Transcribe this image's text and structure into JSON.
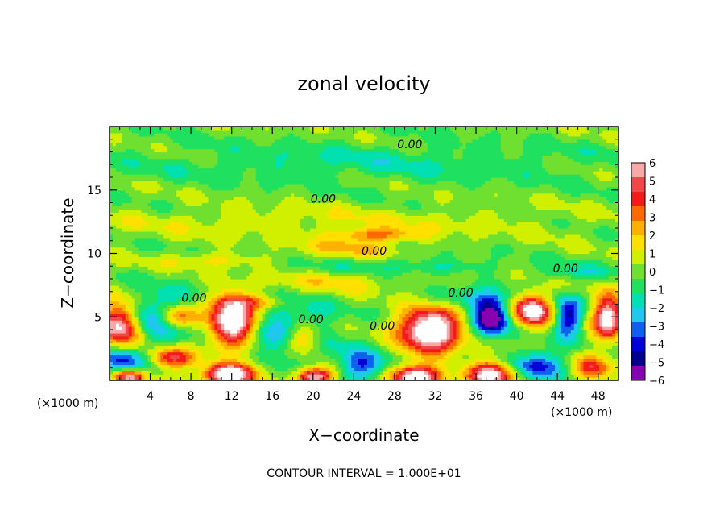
{
  "chart_data": {
    "type": "heatmap",
    "title": "zonal velocity",
    "xlabel": "X−coordinate",
    "ylabel": "Z−coordinate",
    "xunit_left": "(×1000 m)",
    "xunit_right": "(×1000 m)",
    "footer": "CONTOUR INTERVAL = 1.000E+01",
    "xlim": [
      0,
      50
    ],
    "ylim": [
      0,
      20
    ],
    "x_ticks": [
      {
        "value": 4,
        "label": "4"
      },
      {
        "value": 8,
        "label": "8"
      },
      {
        "value": 12,
        "label": "12"
      },
      {
        "value": 16,
        "label": "16"
      },
      {
        "value": 20,
        "label": "20"
      },
      {
        "value": 24,
        "label": "24"
      },
      {
        "value": 28,
        "label": "28"
      },
      {
        "value": 32,
        "label": "32"
      },
      {
        "value": 36,
        "label": "36"
      },
      {
        "value": 40,
        "label": "40"
      },
      {
        "value": 44,
        "label": "44"
      },
      {
        "value": 48,
        "label": "48"
      }
    ],
    "y_ticks": [
      {
        "value": 5,
        "label": "5"
      },
      {
        "value": 10,
        "label": "10"
      },
      {
        "value": 15,
        "label": "15"
      }
    ],
    "colorbar": {
      "min": -6,
      "max": 6,
      "labels": [
        "6",
        "5",
        "4",
        "3",
        "2",
        "1",
        "0",
        "−1",
        "−2",
        "−3",
        "−4",
        "−5",
        "−6"
      ],
      "colors": [
        "#f7a8a8",
        "#f04848",
        "#f51a1a",
        "#ff6a00",
        "#ffb000",
        "#ffe000",
        "#d0f000",
        "#70e030",
        "#20e060",
        "#00e0b0",
        "#20c8f0",
        "#1060f0",
        "#0000d8",
        "#000090",
        "#8800b0"
      ]
    },
    "contour_labels": [
      {
        "x": 29.5,
        "y": 18.3,
        "text": "0.00"
      },
      {
        "x": 21.0,
        "y": 14.0,
        "text": "0.00"
      },
      {
        "x": 26.0,
        "y": 9.9,
        "text": "0.00"
      },
      {
        "x": 44.8,
        "y": 8.5,
        "text": "0.00"
      },
      {
        "x": 34.5,
        "y": 6.6,
        "text": "0.00"
      },
      {
        "x": 8.3,
        "y": 6.2,
        "text": "0.00"
      },
      {
        "x": 19.8,
        "y": 4.5,
        "text": "0.00"
      },
      {
        "x": 26.8,
        "y": 4.0,
        "text": "0.00"
      }
    ],
    "features": [
      {
        "x": 1.0,
        "y": 4.5,
        "rx": 2.0,
        "ry": 1.6,
        "amp": 7
      },
      {
        "x": 6.5,
        "y": 5.0,
        "rx": 2.2,
        "ry": 1.1,
        "amp": 8
      },
      {
        "x": 5.5,
        "y": 5.0,
        "rx": 3.2,
        "ry": 1.7,
        "amp": -6
      },
      {
        "x": 12.0,
        "y": 4.8,
        "rx": 2.2,
        "ry": 1.9,
        "amp": 8
      },
      {
        "x": 19.0,
        "y": 3.3,
        "rx": 2.0,
        "ry": 1.4,
        "amp": 7
      },
      {
        "x": 18.5,
        "y": 3.5,
        "rx": 3.3,
        "ry": 2.2,
        "amp": -5
      },
      {
        "x": 31.5,
        "y": 4.0,
        "rx": 3.0,
        "ry": 1.9,
        "amp": 8
      },
      {
        "x": 37.5,
        "y": 5.0,
        "rx": 1.7,
        "ry": 1.4,
        "amp": -7
      },
      {
        "x": 41.5,
        "y": 5.6,
        "rx": 1.9,
        "ry": 1.3,
        "amp": 7
      },
      {
        "x": 45.0,
        "y": 5.0,
        "rx": 1.3,
        "ry": 1.5,
        "amp": -5
      },
      {
        "x": 49.0,
        "y": 5.0,
        "rx": 1.5,
        "ry": 1.7,
        "amp": 7
      },
      {
        "x": 6.0,
        "y": 1.8,
        "rx": 2.5,
        "ry": 0.8,
        "amp": 5
      },
      {
        "x": 1.5,
        "y": 1.5,
        "rx": 2.5,
        "ry": 0.9,
        "amp": -4
      },
      {
        "x": 12.0,
        "y": 0.5,
        "rx": 2.6,
        "ry": 0.9,
        "amp": 8
      },
      {
        "x": 20.0,
        "y": 0.3,
        "rx": 2.0,
        "ry": 0.7,
        "amp": 7
      },
      {
        "x": 25.0,
        "y": 1.2,
        "rx": 2.2,
        "ry": 1.2,
        "amp": -4
      },
      {
        "x": 30.0,
        "y": 0.3,
        "rx": 2.5,
        "ry": 0.8,
        "amp": 7
      },
      {
        "x": 37.5,
        "y": 0.5,
        "rx": 2.2,
        "ry": 1.0,
        "amp": 7
      },
      {
        "x": 42.0,
        "y": 1.3,
        "rx": 2.5,
        "ry": 1.1,
        "amp": -4
      },
      {
        "x": 47.5,
        "y": 1.0,
        "rx": 1.8,
        "ry": 1.0,
        "amp": 4
      },
      {
        "x": 2.0,
        "y": 0.3,
        "rx": 1.5,
        "ry": 0.5,
        "amp": 6
      },
      {
        "x": 10.0,
        "y": 9.5,
        "rx": 5.0,
        "ry": 0.6,
        "amp": 1.5
      },
      {
        "x": 26.0,
        "y": 11.5,
        "rx": 4.0,
        "ry": 0.5,
        "amp": 3
      },
      {
        "x": 24.0,
        "y": 10.5,
        "rx": 5.0,
        "ry": 0.7,
        "amp": 2
      },
      {
        "x": 22.0,
        "y": 7.8,
        "rx": 6.0,
        "ry": 0.8,
        "amp": 1.5
      },
      {
        "x": 30.0,
        "y": 9.0,
        "rx": 8.0,
        "ry": 0.6,
        "amp": -1.5
      },
      {
        "x": 35.0,
        "y": 6.5,
        "rx": 5.0,
        "ry": 0.8,
        "amp": -2
      },
      {
        "x": 25.0,
        "y": 17.2,
        "rx": 25.0,
        "ry": 1.6,
        "amp": -1.2
      },
      {
        "x": 20.0,
        "y": 12.5,
        "rx": 25.0,
        "ry": 1.2,
        "amp": 1.0
      },
      {
        "x": 14.0,
        "y": 6.2,
        "rx": 3.5,
        "ry": 0.5,
        "amp": 2
      },
      {
        "x": 46.0,
        "y": 8.5,
        "rx": 4.0,
        "ry": 0.6,
        "amp": -1.5
      }
    ]
  }
}
